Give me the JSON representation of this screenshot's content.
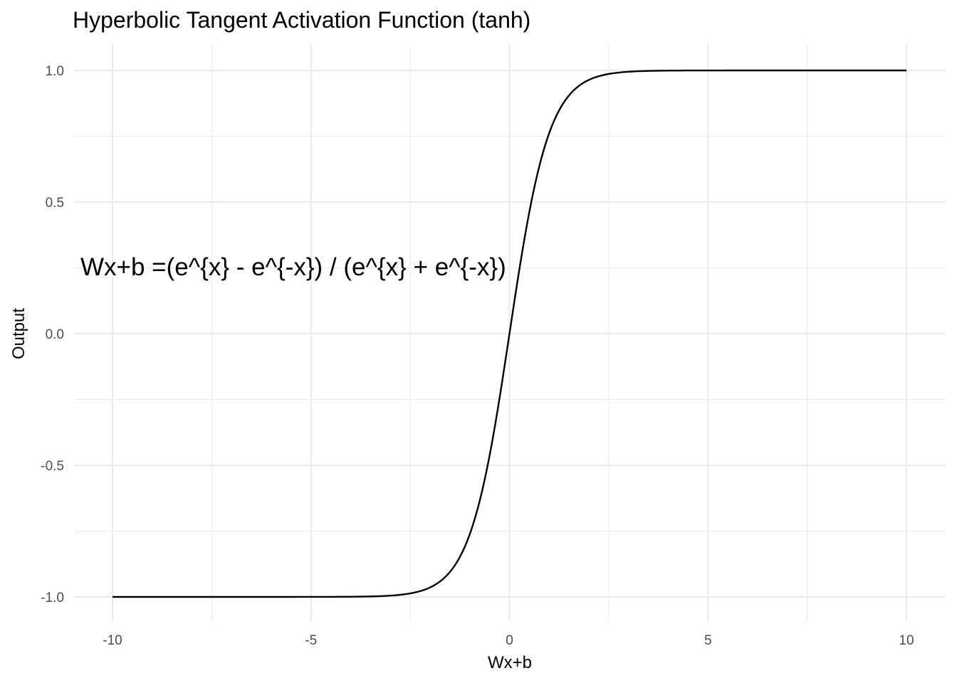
{
  "chart_data": {
    "type": "line",
    "title": "Hyperbolic Tangent Activation Function (tanh)",
    "xlabel": "Wx+b",
    "ylabel": "Output",
    "xlim": [
      -10,
      10
    ],
    "ylim": [
      -1,
      1
    ],
    "x_ticks": [
      -10,
      -5,
      0,
      5,
      10
    ],
    "x_tick_labels": [
      "-10",
      "-5",
      "0",
      "5",
      "10"
    ],
    "y_ticks": [
      -1.0,
      -0.5,
      0.0,
      0.5,
      1.0
    ],
    "y_tick_labels": [
      "-1.0",
      "-0.5",
      "0.0",
      "0.5",
      "1.0"
    ],
    "grid": true,
    "annotation": {
      "text": "Wx+b =(e^{x} - e^{-x}) / (e^{x} + e^{-x})",
      "x": -10.8,
      "y": 0.25
    },
    "series": [
      {
        "x": [
          -10,
          -5,
          -3,
          -2.5,
          -2,
          -1.5,
          -1.25,
          -1,
          -0.75,
          -0.5,
          -0.25,
          0,
          0.25,
          0.5,
          0.75,
          1,
          1.25,
          1.5,
          2,
          2.5,
          3,
          5,
          10
        ],
        "y": [
          -1.0,
          -0.9999,
          -0.9951,
          -0.9866,
          -0.964,
          -0.9051,
          -0.8483,
          -0.7616,
          -0.6351,
          -0.4621,
          -0.2449,
          0.0,
          0.2449,
          0.4621,
          0.6351,
          0.7616,
          0.8483,
          0.9051,
          0.964,
          0.9866,
          0.9951,
          0.9999,
          1.0
        ]
      }
    ],
    "colors": {
      "line": "#000000",
      "grid": "#ebebeb",
      "tick_text": "#4d4d4d"
    }
  }
}
